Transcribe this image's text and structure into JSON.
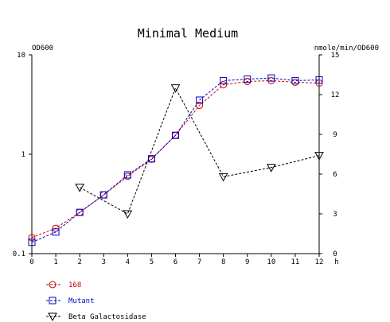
{
  "chart_data": {
    "type": "line",
    "title": "Minimal Medium",
    "xlabel": "h",
    "y_left_label": "OD600",
    "y_right_label": "nmole/min/OD600",
    "x_ticks": [
      "0",
      "1",
      "2",
      "3",
      "4",
      "5",
      "6",
      "7",
      "8",
      "9",
      "10",
      "11",
      "12"
    ],
    "xlim": [
      0,
      12
    ],
    "y_left_scale": "log",
    "y_left_ticks": [
      "0.1",
      "1",
      "10"
    ],
    "y_left_range": [
      0.1,
      10
    ],
    "y_right_ticks": [
      "0",
      "3",
      "6",
      "9",
      "12",
      "15"
    ],
    "y_right_range": [
      0,
      15
    ],
    "grid": false,
    "legend_position": "bottom-left",
    "series": [
      {
        "name": "168",
        "axis": "left",
        "color": "#cc0000",
        "marker": "circle",
        "dash": true,
        "x": [
          0,
          1,
          2,
          3,
          4,
          5,
          6,
          7,
          8,
          9,
          10,
          11,
          12
        ],
        "y": [
          0.145,
          0.18,
          0.26,
          0.39,
          0.6,
          0.89,
          1.55,
          3.1,
          5.0,
          5.4,
          5.5,
          5.3,
          5.2
        ]
      },
      {
        "name": "Mutant",
        "axis": "left",
        "color": "#0000cc",
        "marker": "square",
        "dash": true,
        "x": [
          0,
          1,
          2,
          3,
          4,
          5,
          6,
          7,
          8,
          9,
          10,
          11,
          12
        ],
        "y": [
          0.13,
          0.165,
          0.26,
          0.39,
          0.62,
          0.9,
          1.55,
          3.5,
          5.5,
          5.7,
          5.85,
          5.5,
          5.6
        ]
      },
      {
        "name": "Beta Galactosidase",
        "axis": "right",
        "color": "#000000",
        "marker": "triangle-down",
        "dash": true,
        "x": [
          2,
          4,
          6,
          8,
          10,
          12
        ],
        "y": [
          5.0,
          3.0,
          12.5,
          5.8,
          6.5,
          7.4
        ]
      }
    ]
  }
}
